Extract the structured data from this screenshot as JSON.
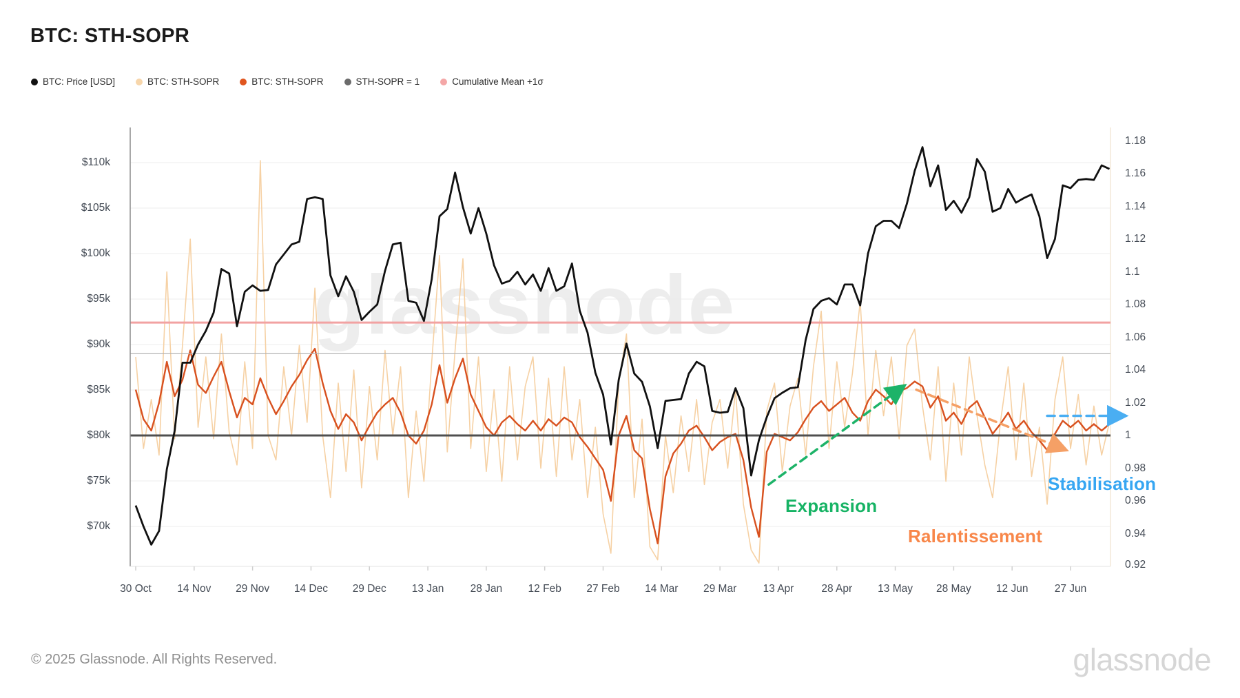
{
  "title": "BTC: STH-SOPR",
  "watermark": "glassnode",
  "legend": [
    {
      "label": "BTC: Price [USD]",
      "color": "#111111"
    },
    {
      "label": "BTC: STH-SOPR",
      "color": "#f7d6ab"
    },
    {
      "label": "BTC: STH-SOPR",
      "color": "#e0561f"
    },
    {
      "label": "STH-SOPR = 1",
      "color": "#6b6b6b"
    },
    {
      "label": "Cumulative Mean +1σ",
      "color": "#f4a7a7"
    }
  ],
  "annotations": {
    "expansion": {
      "label": "Expansion",
      "color": "#16b364"
    },
    "ralentissement": {
      "label": "Ralentissement",
      "color": "#f8874a"
    },
    "stabilisation": {
      "label": "Stabilisation",
      "color": "#36a6f2"
    },
    "arrows": [
      {
        "name": "expansion-arrow",
        "color": "#1db368",
        "from_day": 162.5,
        "from_value": 0.97,
        "to_day": 196.5,
        "to_value": 1.029
      },
      {
        "name": "ralentissement-arrow",
        "color": "#f5a066",
        "from_day": 200.4,
        "from_value": 1.028,
        "to_day": 237.9,
        "to_value": 0.992
      },
      {
        "name": "stabilisation-arrow",
        "color": "#4aaef2",
        "from_day": 234.0,
        "from_value": 1.012,
        "to_day": 253.1,
        "to_value": 1.012
      }
    ]
  },
  "footer": {
    "copyright": "© 2025 Glassnode. All Rights Reserved.",
    "brand": "glassnode"
  },
  "chart_data": {
    "type": "line",
    "title": "BTC: STH-SOPR",
    "grid": "horizontal",
    "legend_position": "top-left",
    "x_axis": {
      "tick_labels": [
        "30 Oct",
        "14 Nov",
        "29 Nov",
        "14 Dec",
        "29 Dec",
        "13 Jan",
        "28 Jan",
        "12 Feb",
        "27 Feb",
        "14 Mar",
        "29 Mar",
        "13 Apr",
        "28 Apr",
        "13 May",
        "28 May",
        "12 Jun",
        "27 Jun"
      ],
      "days_between_ticks": 15,
      "total_days": 250
    },
    "y_left_axis": {
      "unit": "USD",
      "tick_labels": [
        "$110k",
        "$105k",
        "$100k",
        "$95k",
        "$90k",
        "$85k",
        "$80k",
        "$75k",
        "$70k"
      ],
      "tick_values_usd_k": [
        110,
        105,
        100,
        95,
        90,
        85,
        80,
        75,
        70
      ],
      "range_usd_k": [
        66.1,
        113.9
      ]
    },
    "y_right_axis": {
      "unit": "SOPR",
      "tick_labels": [
        "1.18",
        "1.16",
        "1.14",
        "1.12",
        "1.1",
        "1.08",
        "1.06",
        "1.04",
        "1.02",
        "1",
        "0.98",
        "0.96",
        "0.94",
        "0.92"
      ],
      "tick_values": [
        1.18,
        1.16,
        1.14,
        1.12,
        1.1,
        1.08,
        1.06,
        1.04,
        1.02,
        1,
        0.98,
        0.96,
        0.94,
        0.92
      ],
      "range": [
        0.92,
        1.188
      ]
    },
    "reference_lines": [
      {
        "label": "Cumulative Mean +1σ",
        "value": 1.069,
        "color": "#f2a2a2",
        "width": 3
      },
      {
        "label": "Cumulative Mean",
        "value": 1.05,
        "color": "#b3b3b3",
        "width": 1.3
      },
      {
        "label": "STH-SOPR = 1",
        "value": 1.0,
        "color": "#4f4f4f",
        "width": 3
      }
    ],
    "series": [
      {
        "name": "BTC: STH-SOPR (raw)",
        "axis": "right",
        "color": "#f6d1a4",
        "width": 1.6,
        "sample_step_days": 2,
        "values": [
          1.048,
          0.992,
          1.022,
          0.988,
          1.1,
          0.998,
          1.055,
          1.12,
          1.005,
          1.048,
          0.998,
          1.062,
          1.002,
          0.982,
          1.045,
          0.992,
          1.168,
          1.0,
          0.985,
          1.042,
          1.0,
          1.055,
          1.008,
          1.09,
          1.0,
          0.962,
          1.032,
          0.978,
          1.04,
          0.968,
          1.03,
          0.985,
          1.052,
          1.0,
          1.042,
          0.962,
          1.015,
          0.972,
          1.045,
          1.11,
          0.99,
          1.052,
          1.108,
          0.992,
          1.048,
          0.978,
          1.028,
          0.972,
          1.042,
          0.985,
          1.03,
          1.048,
          0.98,
          1.035,
          0.975,
          1.042,
          0.985,
          1.022,
          0.962,
          1.005,
          0.952,
          0.928,
          1.032,
          1.062,
          0.962,
          1.01,
          0.932,
          0.924,
          1.0,
          0.965,
          1.012,
          0.978,
          1.022,
          0.97,
          1.008,
          1.022,
          0.98,
          1.028,
          0.958,
          0.93,
          0.922,
          1.015,
          1.032,
          0.978,
          1.018,
          1.035,
          0.988,
          1.042,
          1.076,
          0.992,
          1.045,
          1.005,
          1.038,
          1.082,
          1.0,
          1.052,
          1.012,
          1.048,
          0.998,
          1.055,
          1.065,
          1.018,
          0.985,
          1.042,
          0.972,
          1.032,
          0.988,
          1.048,
          1.012,
          0.982,
          0.962,
          1.008,
          1.042,
          0.985,
          1.032,
          0.975,
          1.005,
          0.958,
          1.022,
          1.048,
          0.992,
          1.025,
          0.982,
          1.018,
          0.988,
          1.008
        ]
      },
      {
        "name": "BTC: STH-SOPR (smoothed)",
        "axis": "right",
        "color": "#d8511f",
        "width": 2.4,
        "sample_step_days": 2,
        "values": [
          1.028,
          1.01,
          1.003,
          1.02,
          1.045,
          1.024,
          1.034,
          1.052,
          1.031,
          1.026,
          1.036,
          1.045,
          1.027,
          1.011,
          1.023,
          1.019,
          1.035,
          1.023,
          1.013,
          1.021,
          1.03,
          1.037,
          1.046,
          1.053,
          1.032,
          1.015,
          1.004,
          1.013,
          1.008,
          0.997,
          1.006,
          1.014,
          1.019,
          1.023,
          1.014,
          1.0,
          0.995,
          1.003,
          1.019,
          1.043,
          1.02,
          1.035,
          1.047,
          1.025,
          1.015,
          1.005,
          1.0,
          1.008,
          1.012,
          1.007,
          1.003,
          1.009,
          1.003,
          1.01,
          1.006,
          1.011,
          1.008,
          0.999,
          0.993,
          0.986,
          0.979,
          0.96,
          1.0,
          1.012,
          0.991,
          0.986,
          0.955,
          0.934,
          0.975,
          0.989,
          0.995,
          1.003,
          1.006,
          0.999,
          0.991,
          0.996,
          0.999,
          1.001,
          0.985,
          0.956,
          0.938,
          0.99,
          1.001,
          0.999,
          0.997,
          1.002,
          1.01,
          1.017,
          1.021,
          1.015,
          1.019,
          1.023,
          1.014,
          1.009,
          1.021,
          1.028,
          1.024,
          1.019,
          1.027,
          1.029,
          1.033,
          1.03,
          1.017,
          1.024,
          1.009,
          1.014,
          1.007,
          1.017,
          1.021,
          1.011,
          1.001,
          1.007,
          1.014,
          1.004,
          1.009,
          1.002,
          0.997,
          0.991,
          1.001,
          1.009,
          1.005,
          1.009,
          1.003,
          1.007,
          1.003,
          1.007
        ]
      },
      {
        "name": "BTC: Price [USD]",
        "axis": "left",
        "color": "#111111",
        "width": 2.8,
        "sample_step_days": 2,
        "values_usd_k": [
          72.3,
          70.0,
          68.0,
          69.5,
          76.3,
          80.5,
          88.0,
          88.0,
          90.0,
          91.5,
          93.5,
          98.3,
          97.8,
          92.0,
          95.8,
          96.5,
          95.9,
          96.0,
          98.8,
          99.9,
          101.0,
          101.3,
          106.0,
          106.2,
          106.0,
          97.6,
          95.3,
          97.5,
          95.8,
          92.7,
          93.6,
          94.4,
          98.1,
          101.0,
          101.2,
          94.8,
          94.6,
          92.6,
          97.2,
          104.1,
          104.9,
          108.9,
          105.1,
          102.2,
          105.0,
          102.2,
          98.7,
          96.7,
          97.0,
          98.0,
          96.6,
          97.7,
          95.9,
          98.4,
          95.9,
          96.4,
          98.9,
          93.7,
          91.3,
          86.9,
          84.5,
          79.0,
          86.1,
          90.1,
          86.8,
          85.9,
          83.2,
          78.6,
          83.8,
          83.9,
          84.0,
          86.8,
          88.1,
          87.6,
          82.7,
          82.5,
          82.6,
          85.2,
          83.0,
          75.6,
          79.5,
          82.0,
          84.1,
          84.7,
          85.2,
          85.3,
          90.5,
          93.9,
          94.8,
          95.1,
          94.4,
          96.6,
          96.6,
          94.3,
          100.0,
          103.0,
          103.6,
          103.6,
          102.8,
          105.5,
          109.1,
          111.7,
          107.4,
          109.7,
          104.8,
          105.8,
          104.5,
          106.2,
          110.4,
          109.0,
          104.6,
          105.0,
          107.1,
          105.6,
          106.1,
          106.5,
          104.1,
          99.5,
          101.6,
          107.5,
          107.2,
          108.1,
          108.2,
          108.1,
          109.7,
          109.3
        ]
      }
    ]
  }
}
